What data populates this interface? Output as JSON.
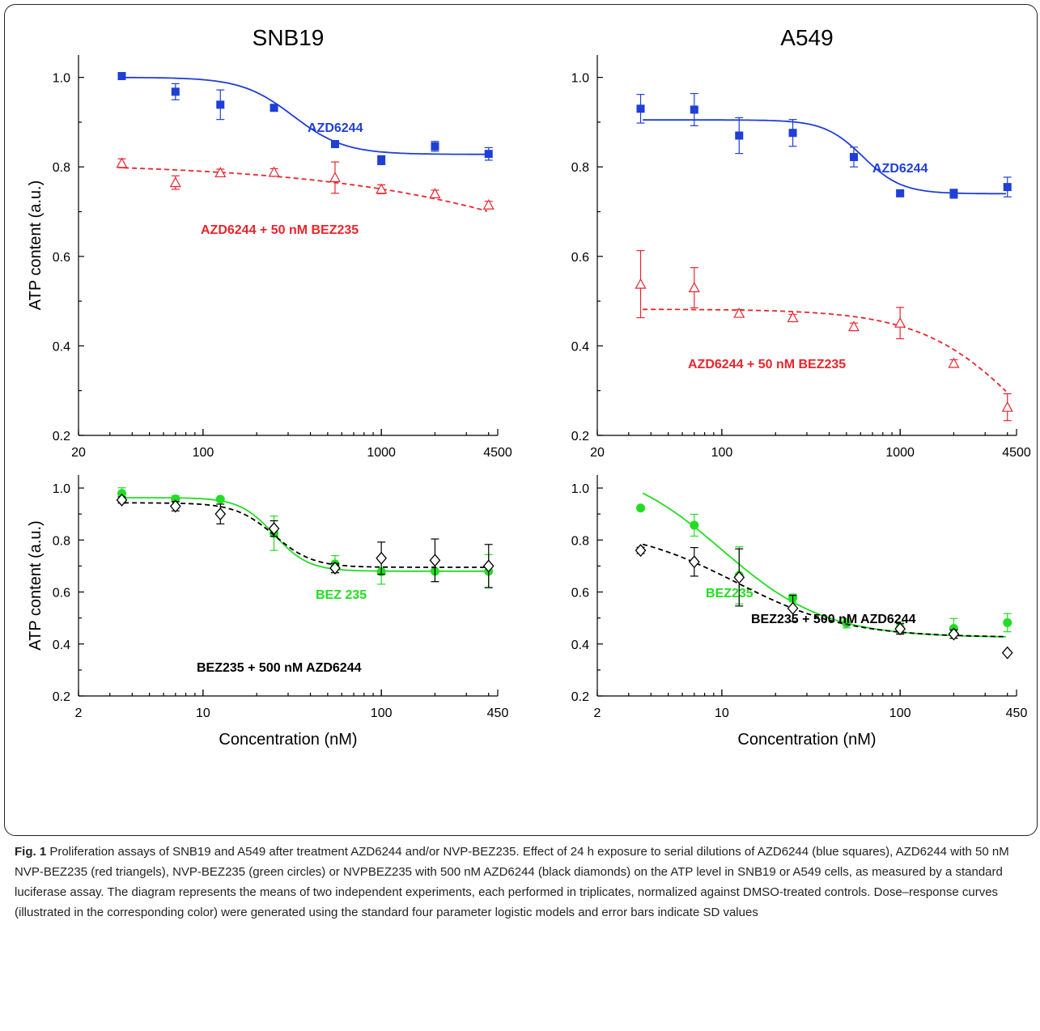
{
  "chart_data": [
    {
      "type": "scatter",
      "title": "SNB19",
      "xlabel": "",
      "ylabel": "ATP content (a.u.)",
      "xscale": "log",
      "xlim": [
        20,
        4500
      ],
      "ylim": [
        0.2,
        1.05
      ],
      "xticks": [
        20,
        100,
        1000,
        4500
      ],
      "yticks": [
        0.2,
        0.4,
        0.6,
        0.8,
        1.0
      ],
      "series": [
        {
          "name": "AZD6244",
          "color": "#1f3fd6",
          "marker": "square",
          "line": "solid",
          "x": [
            35,
            70,
            125,
            250,
            550,
            1000,
            2000,
            4000
          ],
          "y": [
            1.003,
            0.968,
            0.939,
            0.932,
            0.851,
            0.815,
            0.846,
            0.829
          ],
          "err": [
            0.005,
            0.018,
            0.033,
            0.006,
            0.006,
            0.01,
            0.011,
            0.014
          ],
          "fit": {
            "bottom": 0.828,
            "top": 1.0,
            "ec50": 320,
            "hill": 3.0
          }
        },
        {
          "name": "AZD6244 + 50 nM BEZ235",
          "color": "#e8252d",
          "marker": "triangle-open",
          "line": "dashed",
          "x": [
            35,
            70,
            125,
            250,
            550,
            1000,
            2000,
            4000
          ],
          "y": [
            0.808,
            0.765,
            0.787,
            0.788,
            0.776,
            0.75,
            0.74,
            0.715
          ],
          "err": [
            0.01,
            0.015,
            0.008,
            0.008,
            0.035,
            0.01,
            0.008,
            0.008
          ],
          "fit": {
            "bottom": 0.1,
            "top": 0.81,
            "ec50": 120000,
            "hill": 0.5
          }
        }
      ]
    },
    {
      "type": "scatter",
      "title": "A549",
      "xlabel": "",
      "ylabel": "",
      "xscale": "log",
      "xlim": [
        20,
        4500
      ],
      "ylim": [
        0.2,
        1.05
      ],
      "xticks": [
        20,
        100,
        1000,
        4500
      ],
      "yticks": [
        0.2,
        0.4,
        0.6,
        0.8,
        1.0
      ],
      "series": [
        {
          "name": "AZD6244",
          "color": "#1f3fd6",
          "marker": "square",
          "line": "solid",
          "x": [
            35,
            70,
            125,
            250,
            550,
            1000,
            2000,
            4000
          ],
          "y": [
            0.93,
            0.928,
            0.87,
            0.876,
            0.822,
            0.741,
            0.74,
            0.755
          ],
          "err": [
            0.032,
            0.036,
            0.04,
            0.03,
            0.022,
            0.006,
            0.01,
            0.022
          ],
          "fit": {
            "bottom": 0.74,
            "top": 0.905,
            "ec50": 620,
            "hill": 4.0
          }
        },
        {
          "name": "AZD6244 + 50 nM BEZ235",
          "color": "#e8252d",
          "marker": "triangle-open",
          "line": "dashed",
          "x": [
            35,
            70,
            125,
            250,
            550,
            1000,
            2000,
            4000
          ],
          "y": [
            0.538,
            0.53,
            0.473,
            0.463,
            0.443,
            0.451,
            0.361,
            0.263
          ],
          "err": [
            0.075,
            0.045,
            0.008,
            0.007,
            0.008,
            0.035,
            0.008,
            0.03
          ],
          "fit": {
            "bottom": 0.0,
            "top": 0.482,
            "ec50": 5500,
            "hill": 1.45
          }
        }
      ]
    },
    {
      "type": "scatter",
      "title": "",
      "xlabel": "Concentration (nM)",
      "ylabel": "ATP content (a.u.)",
      "xscale": "log",
      "xlim": [
        2,
        450
      ],
      "ylim": [
        0.2,
        1.05
      ],
      "xticks": [
        2,
        10,
        100,
        450
      ],
      "yticks": [
        0.2,
        0.4,
        0.6,
        0.8,
        1.0
      ],
      "series": [
        {
          "name": "BEZ 235",
          "color": "#22dd22",
          "marker": "circle",
          "line": "solid",
          "x": [
            3.5,
            7,
            12.5,
            25,
            55,
            100,
            200,
            400
          ],
          "y": [
            0.979,
            0.958,
            0.957,
            0.826,
            0.708,
            0.678,
            0.68,
            0.68
          ],
          "err": [
            0.022,
            0.012,
            0.005,
            0.066,
            0.032,
            0.048,
            0.04,
            0.064
          ],
          "fit": {
            "bottom": 0.68,
            "top": 0.963,
            "ec50": 25,
            "hill": 4.5
          }
        },
        {
          "name": "BEZ235 + 500 nM AZD6244",
          "color": "#000000",
          "marker": "diamond-open",
          "line": "dashed",
          "x": [
            3.5,
            7,
            12.5,
            25,
            55,
            100,
            200,
            400
          ],
          "y": [
            0.954,
            0.93,
            0.9,
            0.844,
            0.692,
            0.73,
            0.722,
            0.7
          ],
          "err": [
            0.012,
            0.018,
            0.038,
            0.03,
            0.018,
            0.062,
            0.082,
            0.083
          ],
          "fit": {
            "bottom": 0.695,
            "top": 0.943,
            "ec50": 25,
            "hill": 4.0
          }
        }
      ]
    },
    {
      "type": "scatter",
      "title": "",
      "xlabel": "Concentration (nM)",
      "ylabel": "",
      "xscale": "log",
      "xlim": [
        2,
        450
      ],
      "ylim": [
        0.2,
        1.05
      ],
      "xticks": [
        2,
        10,
        100,
        450
      ],
      "yticks": [
        0.2,
        0.4,
        0.6,
        0.8,
        1.0
      ],
      "series": [
        {
          "name": "BEZ235",
          "color": "#22dd22",
          "marker": "circle",
          "line": "solid",
          "x": [
            3.5,
            7,
            12.5,
            25,
            50,
            100,
            200,
            400
          ],
          "y": [
            0.923,
            0.857,
            0.664,
            0.577,
            0.48,
            0.462,
            0.46,
            0.482
          ],
          "err": [
            0.004,
            0.042,
            0.11,
            0.015,
            0.018,
            0.022,
            0.038,
            0.035
          ],
          "fit": {
            "bottom": 0.425,
            "top": 1.1,
            "ec50": 10,
            "hill": 1.5
          }
        },
        {
          "name": "BEZ235 + 500 nM AZD6244",
          "color": "#000000",
          "marker": "diamond-open",
          "line": "dashed",
          "x": [
            3.5,
            7,
            12.5,
            25,
            100,
            200,
            400
          ],
          "y": [
            0.76,
            0.716,
            0.656,
            0.537,
            0.458,
            0.438,
            0.366
          ],
          "err": [
            0.012,
            0.055,
            0.11,
            0.05,
            0.02,
            0.016,
            0.004
          ],
          "fit": {
            "bottom": 0.425,
            "top": 0.85,
            "ec50": 12,
            "hill": 1.4
          }
        }
      ]
    }
  ],
  "caption": {
    "label": "Fig. 1",
    "text": "Proliferation assays of SNB19 and A549 after treatment AZD6244 and/or NVP-BEZ235. Effect of 24 h exposure to serial dilutions of AZD6244 (blue squares), AZD6244 with 50 nM NVP-BEZ235 (red triangels), NVP-BEZ235 (green circles) or NVPBEZ235 with 500 nM AZD6244 (black diamonds) on the ATP level in SNB19 or A549 cells, as measured by a standard luciferase assay. The diagram represents the means of two independent experiments, each performed in triplicates, normalized against DMSO-treated controls. Dose–response curves (illustrated in the corresponding color) were generated using the standard four parameter logistic models and error bars indicate SD values"
  }
}
